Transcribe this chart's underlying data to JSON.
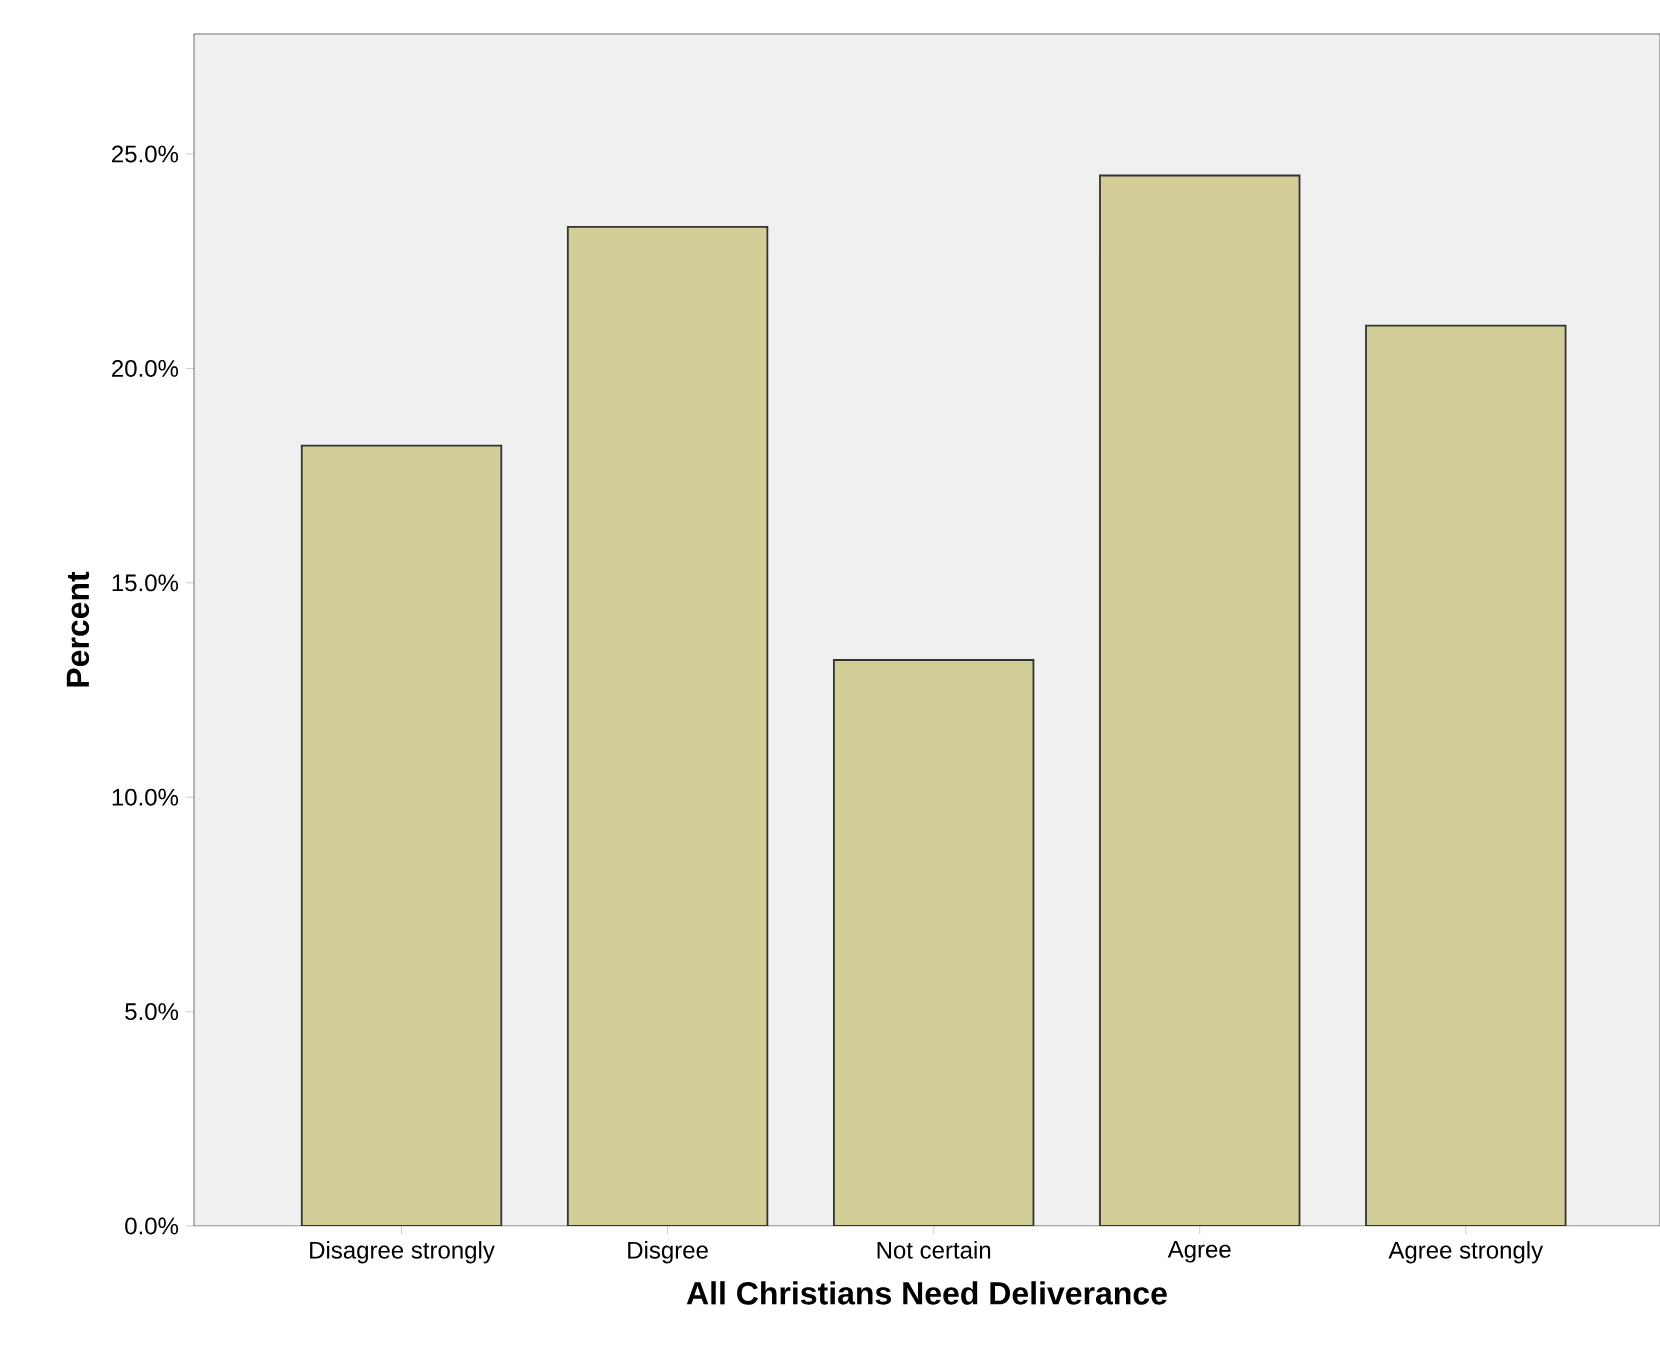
{
  "chart_data": {
    "type": "bar",
    "xlabel": "All Christians Need Deliverance",
    "ylabel": "Percent",
    "categories": [
      "Disagree strongly",
      "Disgree",
      "Not certain",
      "Agree",
      "Agree strongly"
    ],
    "values": [
      18.2,
      23.3,
      13.2,
      24.5,
      21.0
    ],
    "color": "#d3ce97",
    "ylim": [
      0,
      27.8
    ],
    "yticks": [
      {
        "value": 0,
        "label": "0.0%"
      },
      {
        "value": 5,
        "label": "5.0%"
      },
      {
        "value": 10,
        "label": "10.0%"
      },
      {
        "value": 15,
        "label": "15.0%"
      },
      {
        "value": 20,
        "label": "20.0%"
      },
      {
        "value": 25,
        "label": "25.0%"
      }
    ]
  }
}
